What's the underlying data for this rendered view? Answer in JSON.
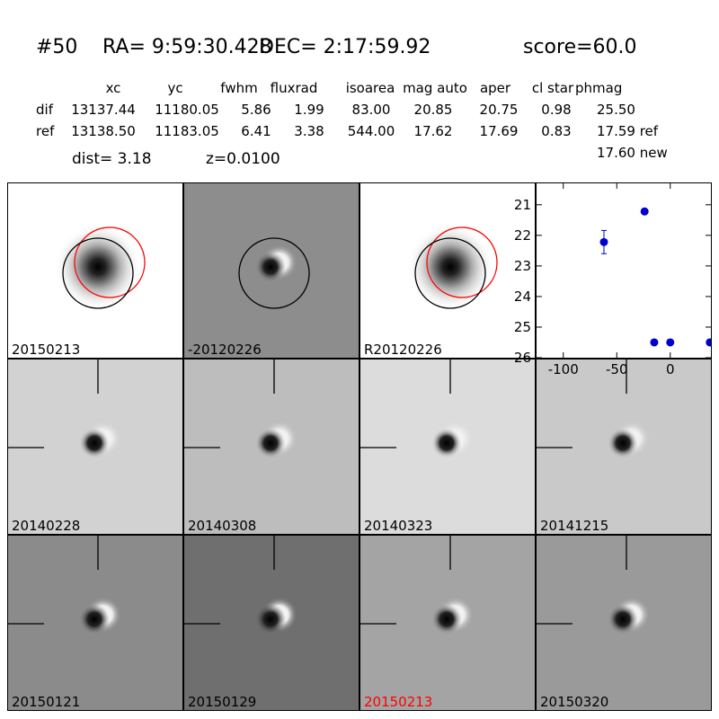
{
  "header": {
    "id": "#50",
    "ra": "RA= 9:59:30.428",
    "dec": "DEC= 2:17:59.92",
    "score": "score=60.0"
  },
  "table": {
    "columns": [
      "xc",
      "yc",
      "fwhm",
      "fluxrad",
      "isoarea",
      "mag auto",
      "aper",
      "cl star",
      "phmag"
    ],
    "rows": [
      {
        "label": "dif",
        "values": [
          "13137.44",
          "11180.05",
          "5.86",
          "1.99",
          "83.00",
          "20.85",
          "20.75",
          "0.98",
          "25.50"
        ]
      },
      {
        "label": "ref",
        "values": [
          "13138.50",
          "11183.05",
          "6.41",
          "3.38",
          "544.00",
          "17.62",
          "17.69",
          "0.83",
          "17.59 ref"
        ]
      }
    ],
    "extra_phmag": "17.60 new"
  },
  "dist": "dist=  3.18",
  "z": "z=0.0100",
  "panels": [
    {
      "label": "20150213",
      "bg": "#ffffff",
      "type": "ref",
      "circles": [
        "red",
        "black"
      ]
    },
    {
      "label": "-20120226",
      "bg": "#8d8d8d",
      "type": "dipole",
      "circles": [
        "black"
      ]
    },
    {
      "label": "R20120226",
      "bg": "#ffffff",
      "type": "ref",
      "circles": [
        "red",
        "black"
      ]
    },
    {
      "label": "20140228",
      "bg": "#d2d2d2",
      "type": "dipole",
      "crosshair": true
    },
    {
      "label": "20140308",
      "bg": "#bdbdbd",
      "type": "dipole",
      "crosshair": true
    },
    {
      "label": "20140323",
      "bg": "#dcdcdc",
      "type": "dipole",
      "crosshair": true
    },
    {
      "label": "20141215",
      "bg": "#c9c9c9",
      "type": "dipole",
      "crosshair": true
    },
    {
      "label": "20150121",
      "bg": "#8b8b8b",
      "type": "dipole",
      "crosshair": true
    },
    {
      "label": "20150129",
      "bg": "#6f6f6f",
      "type": "dipole",
      "crosshair": true
    },
    {
      "label": "20150213",
      "bg": "#a4a4a4",
      "type": "dipole",
      "crosshair": true,
      "label_color": "#ff0000"
    },
    {
      "label": "20150320",
      "bg": "#9a9a9a",
      "type": "dipole",
      "crosshair": true
    }
  ],
  "colors": {
    "marker": "#0000cc",
    "highlight": "#ff0000"
  },
  "chart_data": {
    "type": "scatter",
    "title": "",
    "xlabel": "",
    "ylabel": "",
    "xlim": [
      -125,
      38
    ],
    "ylim": [
      26,
      20.3
    ],
    "yaxis_inverted": true,
    "xticks": [
      -100,
      -50,
      0
    ],
    "yticks": [
      21,
      22,
      23,
      24,
      25,
      26
    ],
    "points": [
      {
        "x": -62,
        "y": 22.22,
        "err": 0.38
      },
      {
        "x": -24,
        "y": 21.22,
        "err": 0.05
      },
      {
        "x": -15,
        "y": 25.5,
        "err": 0.05
      },
      {
        "x": 0,
        "y": 25.5,
        "err": 0.05
      },
      {
        "x": 37,
        "y": 25.5,
        "err": 0.05
      }
    ]
  }
}
